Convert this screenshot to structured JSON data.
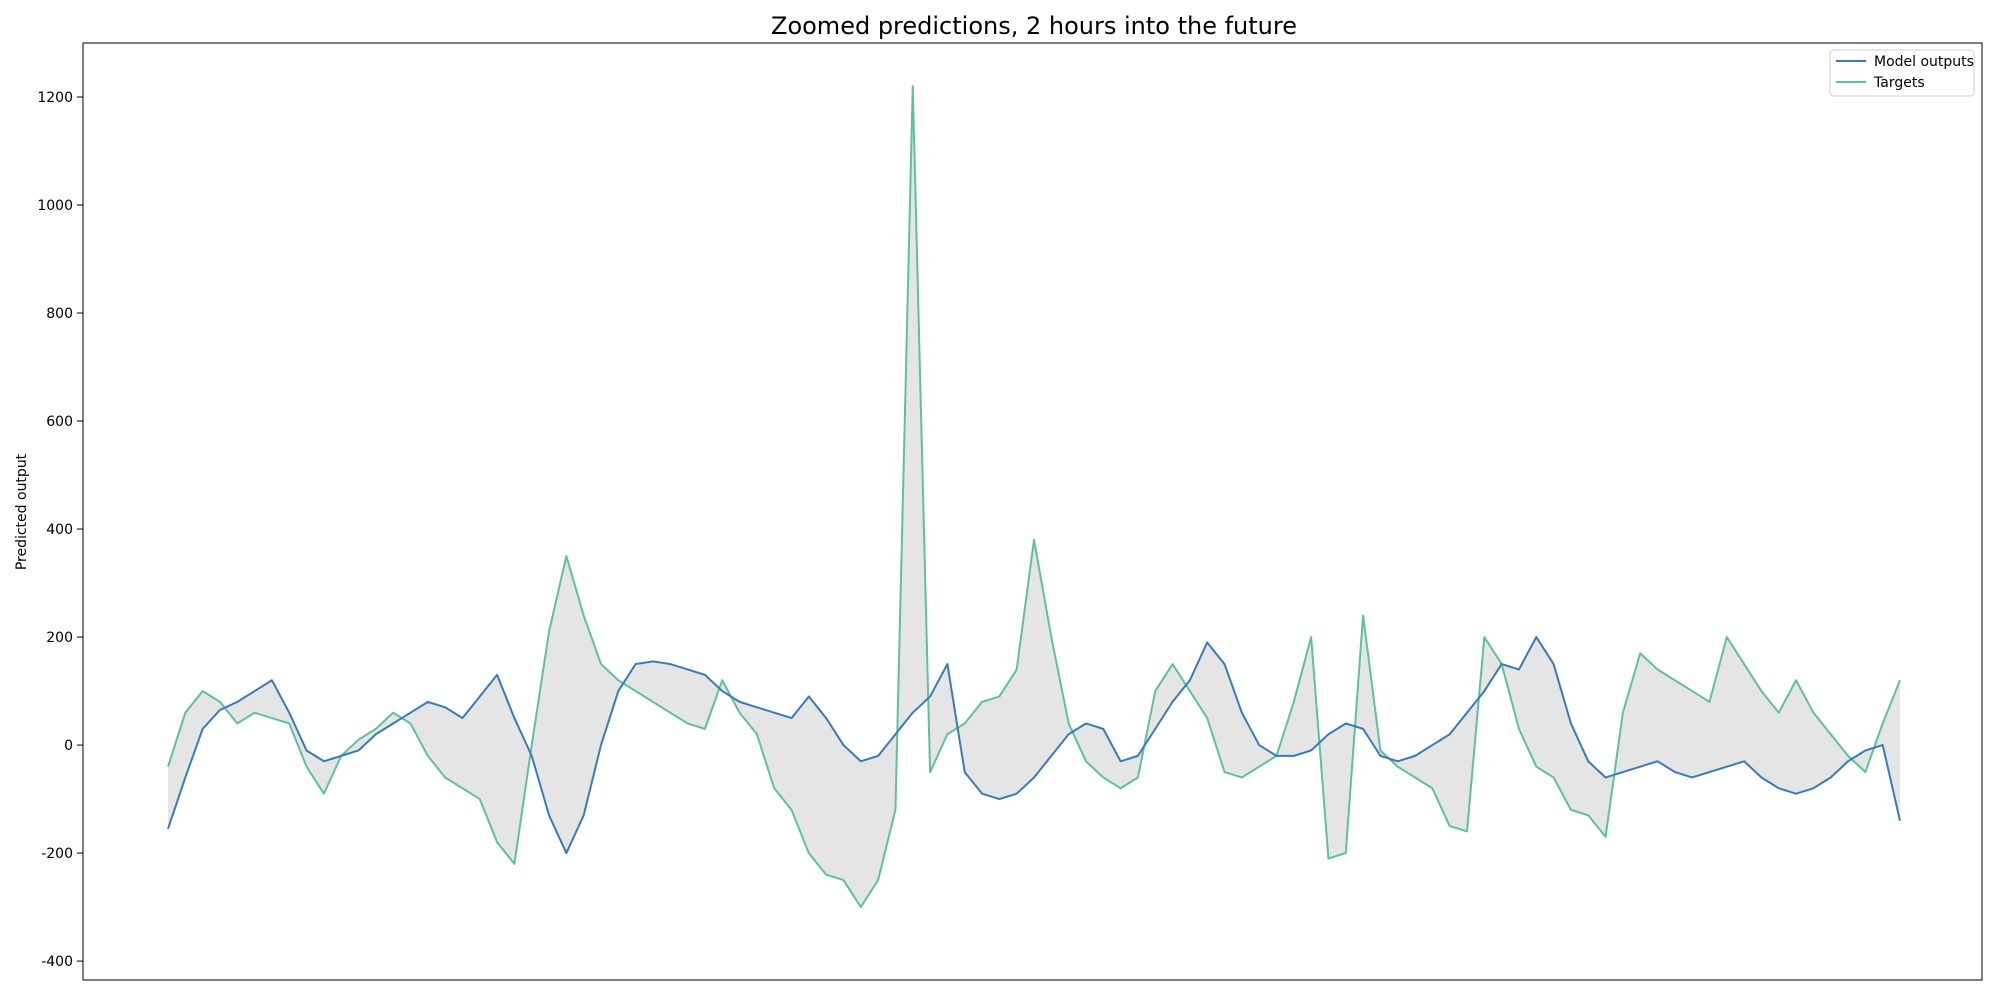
{
  "chart_data": {
    "type": "line",
    "title": "Zoomed predictions, 2 hours into the future",
    "xlabel": "",
    "ylabel": "Predicted output",
    "ylim": [
      -435,
      1300
    ],
    "yticks": [
      -400,
      -200,
      0,
      200,
      400,
      600,
      800,
      1000,
      1200
    ],
    "grid": false,
    "legend": "upper-right",
    "band_fill": "#e5e5e5",
    "x": [
      0,
      10,
      20,
      30,
      40,
      50,
      60,
      70,
      80,
      90,
      100,
      110,
      120,
      130,
      140,
      150,
      160,
      170,
      180,
      190,
      200,
      210,
      220,
      230,
      240,
      250,
      260,
      270,
      280,
      290,
      300,
      310,
      320,
      330,
      340,
      350,
      360,
      370,
      380,
      390,
      400,
      410,
      420,
      430,
      440,
      450,
      460,
      470,
      480,
      490,
      500,
      510,
      520,
      530,
      540,
      550,
      560,
      570,
      580,
      590,
      600,
      610,
      620,
      630,
      640,
      650,
      660,
      670,
      680,
      690,
      700,
      710,
      720,
      730,
      740,
      750,
      760,
      770,
      780,
      790,
      800,
      810,
      820,
      830,
      840,
      850,
      860,
      870,
      880,
      890,
      900,
      910,
      920,
      930,
      940,
      950,
      960,
      970,
      980,
      990,
      1000
    ],
    "series": [
      {
        "name": "Model outputs",
        "color": "#3a7ab8",
        "values": [
          -155,
          -60,
          30,
          65,
          80,
          100,
          120,
          60,
          -10,
          -30,
          -20,
          -10,
          20,
          40,
          60,
          80,
          70,
          50,
          90,
          130,
          50,
          -20,
          -130,
          -200,
          -130,
          0,
          100,
          150,
          155,
          150,
          140,
          130,
          100,
          80,
          70,
          60,
          50,
          90,
          50,
          0,
          -30,
          -20,
          20,
          60,
          90,
          150,
          -50,
          -90,
          -100,
          -90,
          -60,
          -20,
          20,
          40,
          30,
          -30,
          -20,
          30,
          80,
          120,
          190,
          150,
          60,
          0,
          -20,
          -20,
          -10,
          20,
          40,
          30,
          -20,
          -30,
          -20,
          0,
          20,
          60,
          100,
          150,
          140,
          200,
          150,
          40,
          -30,
          -60,
          -50,
          -40,
          -30,
          -50,
          -60,
          -50,
          -40,
          -30,
          -60,
          -80,
          -90,
          -80,
          -60,
          -30,
          -10,
          0,
          -140
        ]
      },
      {
        "name": "Targets",
        "color": "#5fc0a0",
        "values": [
          -40,
          60,
          100,
          80,
          40,
          60,
          50,
          40,
          -40,
          -90,
          -20,
          10,
          30,
          60,
          40,
          -20,
          -60,
          -80,
          -100,
          -180,
          -220,
          0,
          210,
          350,
          240,
          150,
          120,
          100,
          80,
          60,
          40,
          30,
          120,
          60,
          20,
          -80,
          -120,
          -200,
          -240,
          -250,
          -300,
          -250,
          -120,
          1220,
          -50,
          20,
          40,
          80,
          90,
          140,
          380,
          200,
          40,
          -30,
          -60,
          -80,
          -60,
          100,
          150,
          100,
          50,
          -50,
          -60,
          -40,
          -20,
          80,
          200,
          -210,
          -200,
          240,
          -10,
          -40,
          -60,
          -80,
          -150,
          -160,
          200,
          150,
          30,
          -40,
          -60,
          -120,
          -130,
          -170,
          60,
          170,
          140,
          120,
          100,
          80,
          200,
          150,
          100,
          60,
          120,
          60,
          20,
          -20,
          -50,
          40,
          120
        ]
      }
    ]
  }
}
